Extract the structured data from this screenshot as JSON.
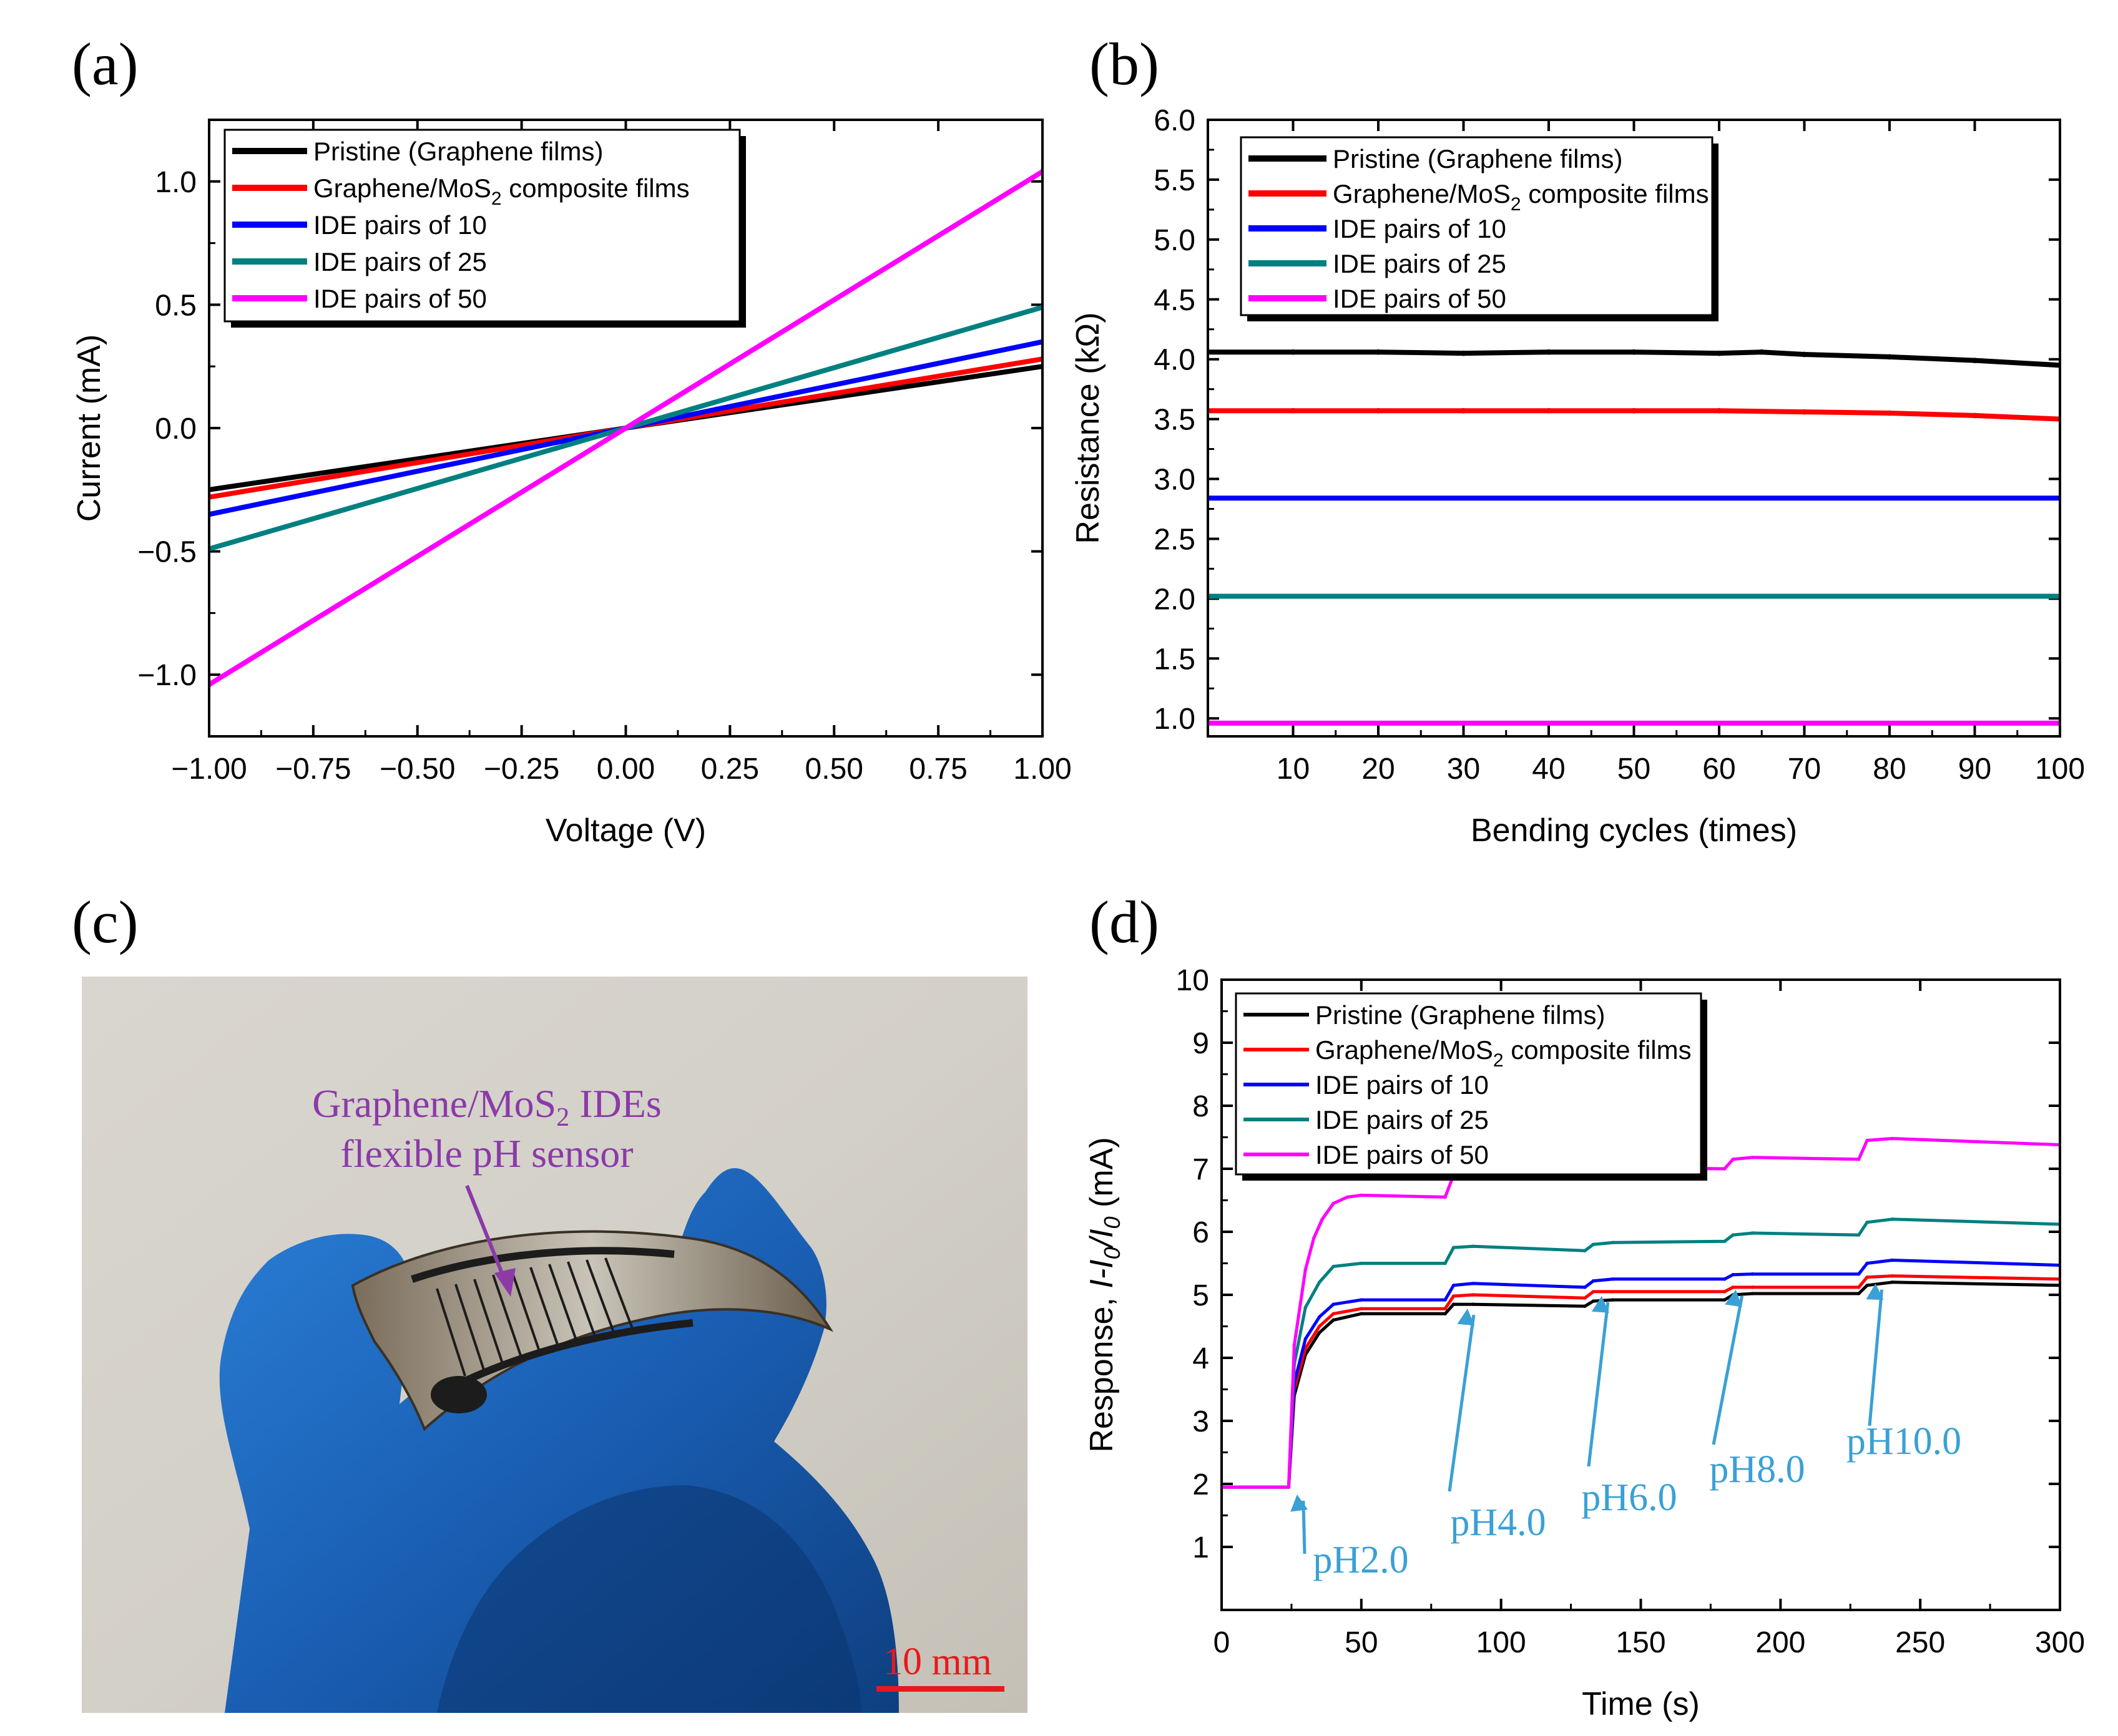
{
  "colors": {
    "pristine": "#000000",
    "composite": "#ff0000",
    "ide10": "#0000ff",
    "ide25": "#008080",
    "ide50": "#ff00ff",
    "annotation": "#3aa0d5",
    "photo_text": "#8b3aa8",
    "scale_bar": "#e8191b"
  },
  "panels": {
    "a": {
      "label": "(a)"
    },
    "b": {
      "label": "(b)"
    },
    "c": {
      "label": "(c)",
      "caption_line1_prefix": "Graphene/MoS",
      "caption_line1_sub": "2",
      "caption_line1_suffix": " IDEs",
      "caption_line2": "flexible pH sensor",
      "scale_bar": "10 mm"
    },
    "d": {
      "label": "(d)"
    }
  },
  "legend": [
    {
      "key": "pristine",
      "text": "Pristine (Graphene films)",
      "sub": "",
      "suffix": ""
    },
    {
      "key": "composite",
      "text": "Graphene/MoS",
      "sub": "2",
      "suffix": " composite films"
    },
    {
      "key": "ide10",
      "text": "IDE pairs of 10",
      "sub": "",
      "suffix": ""
    },
    {
      "key": "ide25",
      "text": "IDE pairs of 25",
      "sub": "",
      "suffix": ""
    },
    {
      "key": "ide50",
      "text": "IDE pairs of 50",
      "sub": "",
      "suffix": ""
    }
  ],
  "chart_data": [
    {
      "id": "a",
      "type": "line",
      "title": "",
      "xlabel": "Voltage (V)",
      "ylabel": "Current (mA)",
      "xlim": [
        -1.0,
        1.0
      ],
      "ylim": [
        -1.25,
        1.25
      ],
      "xticks": [
        -1.0,
        -0.75,
        -0.5,
        -0.25,
        0.0,
        0.25,
        0.5,
        0.75,
        1.0
      ],
      "xtick_labels": [
        "−1.00",
        "−0.75",
        "−0.50",
        "−0.25",
        "0.00",
        "0.25",
        "0.50",
        "0.75",
        "1.00"
      ],
      "yticks": [
        -1.0,
        -0.5,
        0.0,
        0.5,
        1.0
      ],
      "ytick_labels": [
        "−1.0",
        "−0.5",
        "0.0",
        "0.5",
        "1.0"
      ],
      "legend_position": "top-left",
      "series": [
        {
          "key": "pristine",
          "name": "Pristine (Graphene films)",
          "x": [
            -1.0,
            1.0
          ],
          "values": [
            -0.25,
            0.25
          ]
        },
        {
          "key": "composite",
          "name": "Graphene/MoS2 composite films",
          "x": [
            -1.0,
            1.0
          ],
          "values": [
            -0.28,
            0.28
          ]
        },
        {
          "key": "ide10",
          "name": "IDE pairs of 10",
          "x": [
            -1.0,
            1.0
          ],
          "values": [
            -0.35,
            0.35
          ]
        },
        {
          "key": "ide25",
          "name": "IDE pairs of 25",
          "x": [
            -1.0,
            1.0
          ],
          "values": [
            -0.49,
            0.49
          ]
        },
        {
          "key": "ide50",
          "name": "IDE pairs of 50",
          "x": [
            -1.0,
            1.0
          ],
          "values": [
            -1.04,
            1.04
          ]
        }
      ]
    },
    {
      "id": "b",
      "type": "line",
      "title": "",
      "xlabel": "Bending cycles (times)",
      "ylabel": "Resistance (kΩ)",
      "xlim": [
        0,
        100
      ],
      "ylim": [
        0.85,
        6.0
      ],
      "xticks": [
        10,
        20,
        30,
        40,
        50,
        60,
        70,
        80,
        90,
        100
      ],
      "xtick_labels": [
        "10",
        "20",
        "30",
        "40",
        "50",
        "60",
        "70",
        "80",
        "90",
        "100"
      ],
      "yticks": [
        1.0,
        1.5,
        2.0,
        2.5,
        3.0,
        3.5,
        4.0,
        4.5,
        5.0,
        5.5,
        6.0
      ],
      "ytick_labels": [
        "1.0",
        "1.5",
        "2.0",
        "2.5",
        "3.0",
        "3.5",
        "4.0",
        "4.5",
        "5.0",
        "5.5",
        "6.0"
      ],
      "legend_position": "top-left",
      "series": [
        {
          "key": "pristine",
          "name": "Pristine (Graphene films)",
          "x": [
            0,
            10,
            20,
            30,
            40,
            50,
            60,
            65,
            70,
            80,
            90,
            100
          ],
          "values": [
            4.06,
            4.06,
            4.06,
            4.05,
            4.06,
            4.06,
            4.05,
            4.06,
            4.04,
            4.02,
            3.99,
            3.95
          ]
        },
        {
          "key": "composite",
          "name": "Graphene/MoS2 composite films",
          "x": [
            0,
            10,
            20,
            30,
            40,
            50,
            60,
            70,
            80,
            90,
            100
          ],
          "values": [
            3.57,
            3.57,
            3.57,
            3.57,
            3.57,
            3.57,
            3.57,
            3.56,
            3.55,
            3.53,
            3.5
          ]
        },
        {
          "key": "ide10",
          "name": "IDE pairs of 10",
          "x": [
            0,
            100
          ],
          "values": [
            2.84,
            2.84
          ]
        },
        {
          "key": "ide25",
          "name": "IDE pairs of 25",
          "x": [
            0,
            100
          ],
          "values": [
            2.02,
            2.02
          ]
        },
        {
          "key": "ide50",
          "name": "IDE pairs of 50",
          "x": [
            0,
            100
          ],
          "values": [
            0.96,
            0.96
          ]
        }
      ]
    },
    {
      "id": "d",
      "type": "line",
      "title": "",
      "xlabel": "Time (s)",
      "ylabel_prefix": "Response, ",
      "ylabel_var": "I-I",
      "ylabel_sub": "0",
      "ylabel_var2": "/I",
      "ylabel_sub2": "0",
      "ylabel_suffix": " (mA)",
      "xlim": [
        0,
        300
      ],
      "ylim": [
        0,
        10
      ],
      "xticks": [
        0,
        50,
        100,
        150,
        200,
        250,
        300
      ],
      "xtick_labels": [
        "0",
        "50",
        "100",
        "150",
        "200",
        "250",
        "300"
      ],
      "yticks": [
        1,
        2,
        3,
        4,
        5,
        6,
        7,
        8,
        9,
        10
      ],
      "ytick_labels": [
        "1",
        "2",
        "3",
        "4",
        "5",
        "6",
        "7",
        "8",
        "9",
        "10"
      ],
      "legend_position": "top-left",
      "annotations": [
        {
          "text": "pH2.0",
          "x": 27,
          "y": 1.95
        },
        {
          "text": "pH4.0",
          "x": 88,
          "y": 4.9
        },
        {
          "text": "pH6.0",
          "x": 136,
          "y": 5.1
        },
        {
          "text": "pH8.0",
          "x": 184,
          "y": 5.2
        },
        {
          "text": "pH10.0",
          "x": 234,
          "y": 5.3
        }
      ],
      "series": [
        {
          "key": "pristine",
          "name": "Pristine (Graphene films)",
          "x": [
            0,
            24,
            26,
            30,
            35,
            40,
            50,
            80,
            83,
            90,
            130,
            133,
            140,
            180,
            183,
            190,
            228,
            231,
            240,
            300
          ],
          "values": [
            1.95,
            1.95,
            3.4,
            4.05,
            4.4,
            4.6,
            4.7,
            4.7,
            4.85,
            4.85,
            4.82,
            4.9,
            4.92,
            4.92,
            5.0,
            5.02,
            5.02,
            5.15,
            5.2,
            5.15
          ]
        },
        {
          "key": "composite",
          "name": "Graphene/MoS2 composite films",
          "x": [
            0,
            24,
            26,
            30,
            35,
            40,
            50,
            80,
            83,
            90,
            130,
            133,
            140,
            180,
            183,
            190,
            228,
            231,
            240,
            300
          ],
          "values": [
            1.95,
            1.95,
            3.5,
            4.15,
            4.5,
            4.7,
            4.78,
            4.78,
            4.98,
            5.0,
            4.95,
            5.05,
            5.05,
            5.05,
            5.12,
            5.12,
            5.12,
            5.28,
            5.3,
            5.25
          ]
        },
        {
          "key": "ide10",
          "name": "IDE pairs of 10",
          "x": [
            0,
            24,
            26,
            30,
            35,
            40,
            50,
            80,
            83,
            90,
            130,
            133,
            140,
            180,
            183,
            190,
            228,
            231,
            240,
            300
          ],
          "values": [
            1.95,
            1.95,
            3.6,
            4.3,
            4.65,
            4.85,
            4.92,
            4.92,
            5.15,
            5.18,
            5.12,
            5.22,
            5.25,
            5.25,
            5.32,
            5.33,
            5.33,
            5.5,
            5.55,
            5.47
          ]
        },
        {
          "key": "ide25",
          "name": "IDE pairs of 25",
          "x": [
            0,
            24,
            26,
            30,
            35,
            40,
            50,
            80,
            83,
            90,
            130,
            133,
            140,
            180,
            183,
            190,
            228,
            231,
            240,
            300
          ],
          "values": [
            1.95,
            1.95,
            3.9,
            4.8,
            5.2,
            5.45,
            5.5,
            5.5,
            5.75,
            5.77,
            5.7,
            5.8,
            5.83,
            5.85,
            5.95,
            5.98,
            5.95,
            6.15,
            6.2,
            6.12
          ]
        },
        {
          "key": "ide50",
          "name": "IDE pairs of 50",
          "x": [
            0,
            24,
            26,
            30,
            33,
            36,
            40,
            45,
            50,
            80,
            83,
            90,
            130,
            133,
            140,
            180,
            183,
            190,
            228,
            231,
            240,
            300
          ],
          "values": [
            1.95,
            1.95,
            4.2,
            5.4,
            5.9,
            6.2,
            6.45,
            6.55,
            6.58,
            6.55,
            6.9,
            6.93,
            6.85,
            7.0,
            7.02,
            7.0,
            7.15,
            7.18,
            7.15,
            7.45,
            7.48,
            7.38
          ]
        }
      ]
    }
  ]
}
